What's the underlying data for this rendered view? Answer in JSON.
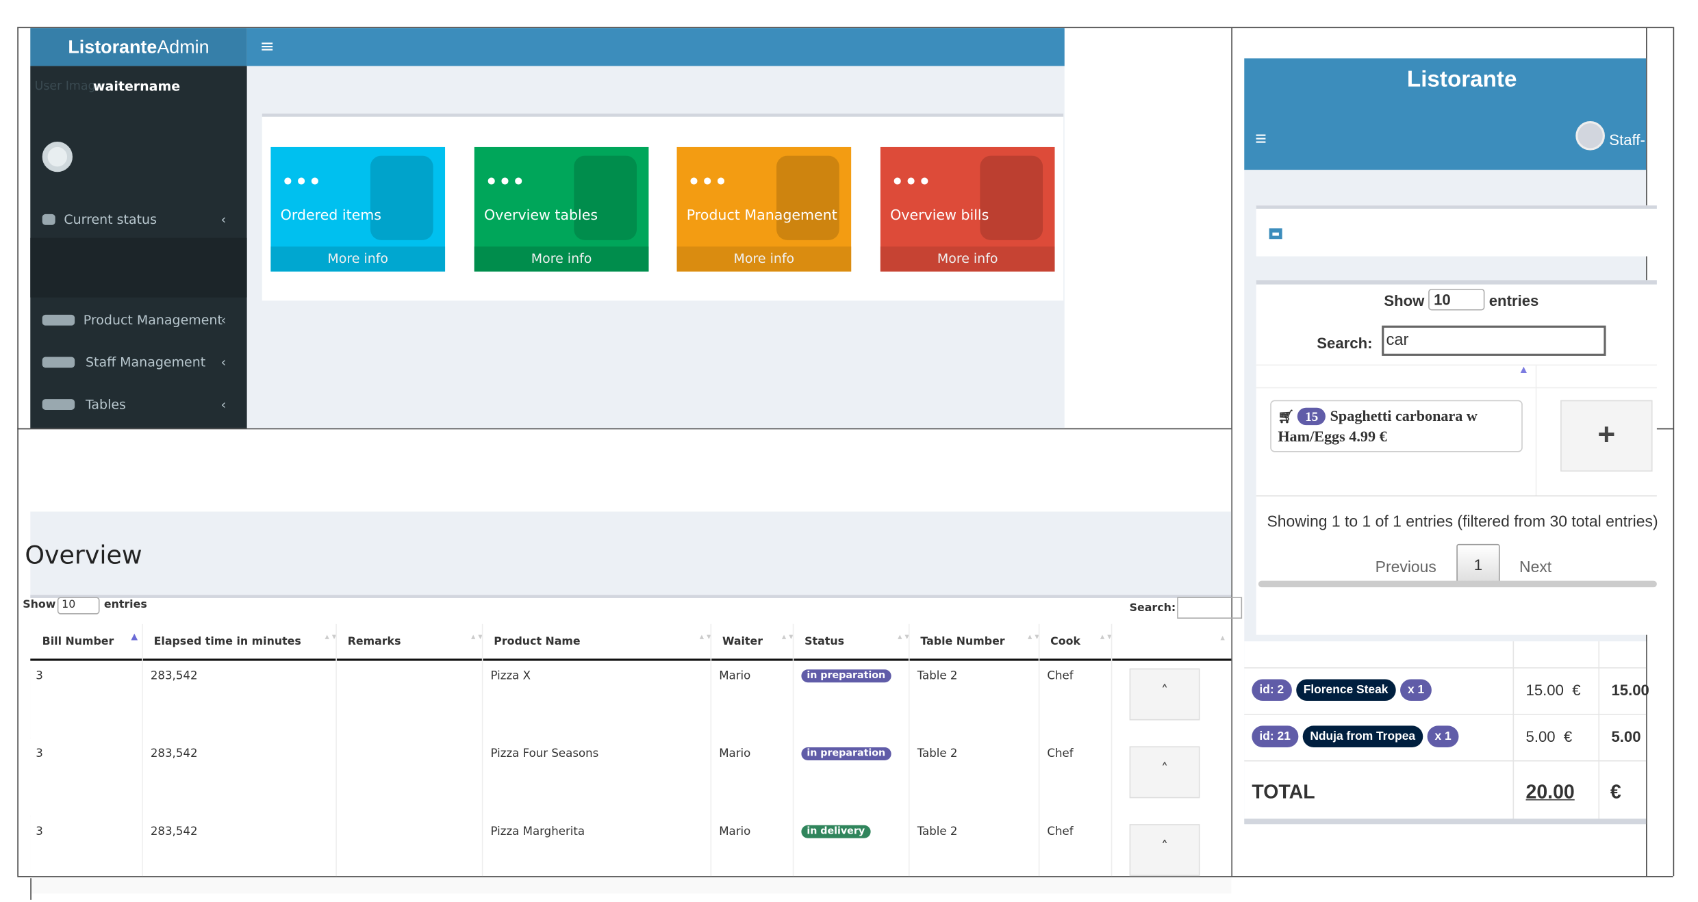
{
  "admin": {
    "brand": {
      "bold": "Listorante",
      "light": "Admin"
    },
    "user_image_alt": "User Image",
    "username": "waitername",
    "menu": [
      "Current status",
      "Product Management",
      "Staff Management",
      "Tables"
    ],
    "tiles": [
      {
        "title": "Ordered items",
        "link": "More info"
      },
      {
        "title": "Overview tables",
        "link": "More info"
      },
      {
        "title": "Product Management",
        "link": "More info"
      },
      {
        "title": "Overview bills",
        "link": "More info"
      }
    ]
  },
  "overview": {
    "title": "Overview",
    "length": {
      "show": "Show",
      "value": "10",
      "entries": "entries"
    },
    "search": "Search:",
    "columns": [
      "Bill Number",
      "Elapsed time in minutes",
      "Remarks",
      "Product Name",
      "Waiter",
      "Status",
      "Table Number",
      "Cook"
    ],
    "rows": [
      {
        "bill": "3",
        "elapsed": "283,542",
        "product": "Pizza X",
        "waiter": "Mario",
        "status": "in preparation",
        "status_color": "#605ca8",
        "table": "Table 2",
        "cook": "Chef"
      },
      {
        "bill": "3",
        "elapsed": "283,542",
        "product": "Pizza Four Seasons",
        "waiter": "Mario",
        "status": "in preparation",
        "status_color": "#605ca8",
        "table": "Table 2",
        "cook": "Chef"
      },
      {
        "bill": "3",
        "elapsed": "283,542",
        "product": "Pizza Margherita",
        "waiter": "Mario",
        "status": "in delivery",
        "status_color": "#30855c",
        "table": "Table 2",
        "cook": "Chef"
      }
    ]
  },
  "mobile": {
    "title": "Listorante",
    "user": "Staff-",
    "length": {
      "show": "Show",
      "value": "10",
      "entries": "entries"
    },
    "search": {
      "label": "Search:",
      "value": "car"
    },
    "item": {
      "count": "15",
      "text": "Spaghetti carbonara w Ham/Eggs 4.99 €"
    },
    "info": "Showing 1 to 1 of 1 entries (filtered from 30 total entries)",
    "pager": {
      "previous": "Previous",
      "page": "1",
      "next": "Next"
    },
    "bill": {
      "items": [
        {
          "id": "id: 2",
          "name": "Florence Steak",
          "qty": "x 1",
          "price": "15.00  €",
          "total": "15.00"
        },
        {
          "id": "id: 21",
          "name": "Nduja from Tropea",
          "qty": "x 1",
          "price": "5.00  €",
          "total": "5.00"
        }
      ],
      "total": {
        "label": "TOTAL",
        "value": "20.00",
        "currency": "€"
      }
    }
  }
}
